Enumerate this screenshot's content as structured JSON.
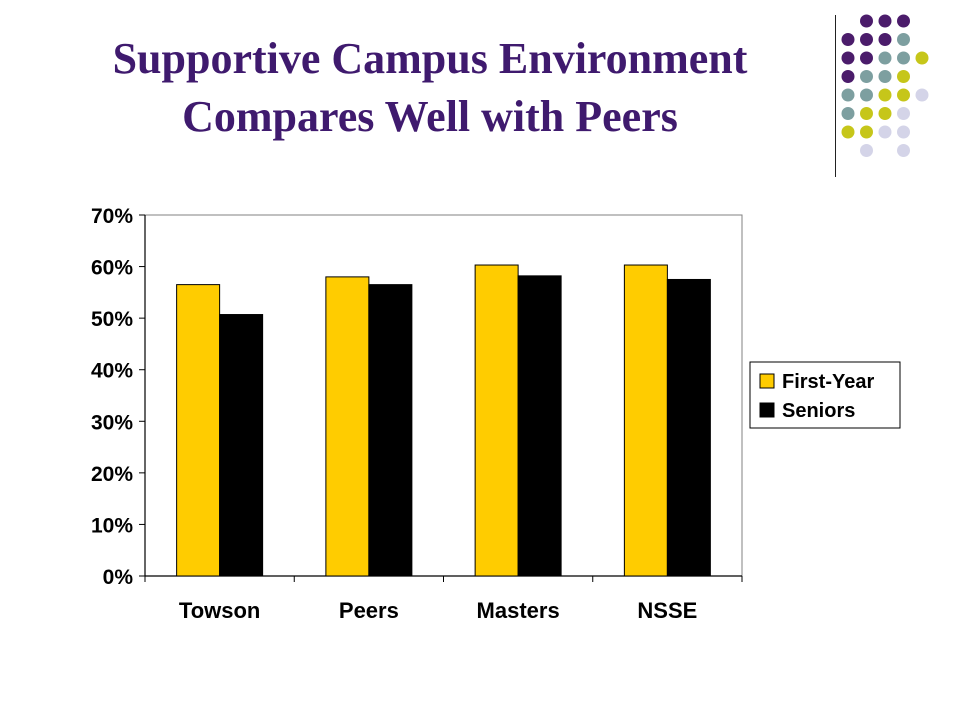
{
  "slide": {
    "title_line1": "Supportive Campus Environment",
    "title_line2": "Compares Well with Peers"
  },
  "colors": {
    "title": "#3f1a6e",
    "first_year": "#ffcc00",
    "seniors": "#000000",
    "dot_purple": "#4b1c6b",
    "dot_teal": "#7d9fa0",
    "dot_olive": "#c6c61a",
    "dot_lavender": "#d4d4e8"
  },
  "chart_data": {
    "type": "bar",
    "categories": [
      "Towson",
      "Peers",
      "Masters",
      "NSSE"
    ],
    "series": [
      {
        "name": "First-Year",
        "values": [
          56.5,
          58,
          60.3,
          60.3
        ],
        "color": "#ffcc00"
      },
      {
        "name": "Seniors",
        "values": [
          50.7,
          56.5,
          58.2,
          57.5
        ],
        "color": "#000000"
      }
    ],
    "y_ticks": [
      "0%",
      "10%",
      "20%",
      "30%",
      "40%",
      "50%",
      "60%",
      "70%"
    ],
    "ylim": [
      0,
      70
    ],
    "legend_position": "right",
    "grid": false
  }
}
